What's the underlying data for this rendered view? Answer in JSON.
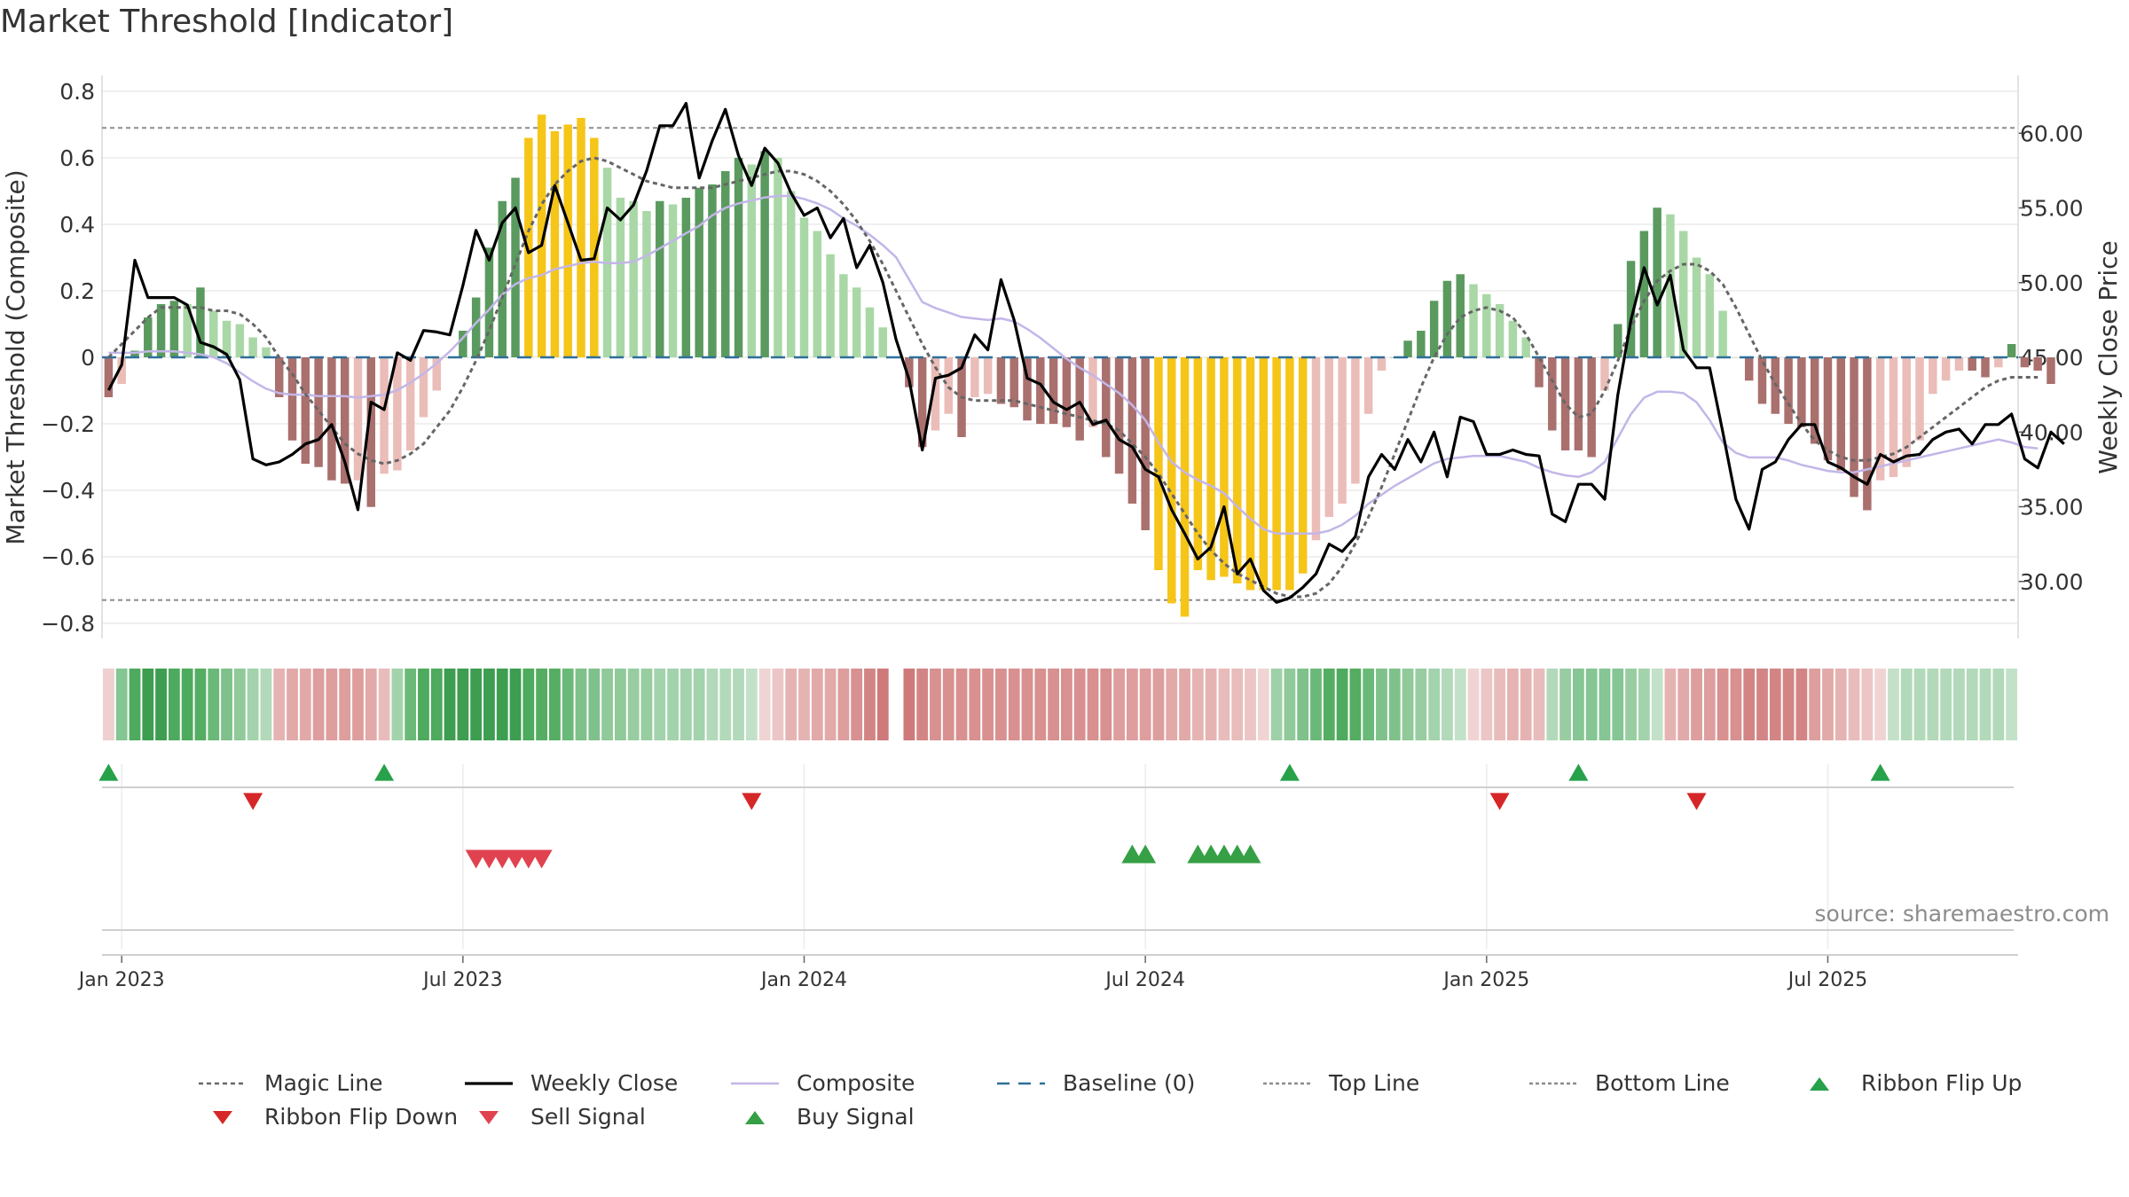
{
  "title": "Market Threshold [Indicator]",
  "source": "source: sharemaestro.com",
  "chart_data": {
    "type": "bar",
    "ylabel_left": "Market Threshold (Composite)",
    "ylabel_right": "Weekly Close Price",
    "ylim_left": [
      -0.84,
      0.84
    ],
    "left_ticks": [
      "0.8",
      "0.6",
      "0.4",
      "0.2",
      "0",
      "−0.2",
      "−0.4",
      "−0.6",
      "−0.8"
    ],
    "left_tick_values": [
      0.8,
      0.6,
      0.4,
      0.2,
      0,
      -0.2,
      -0.4,
      -0.6,
      -0.8
    ],
    "right_ticks": [
      "60.00",
      "55.00",
      "50.00",
      "45.00",
      "40.00",
      "35.00",
      "30.00"
    ],
    "right_tick_values": [
      60,
      55,
      50,
      45,
      40,
      35,
      30
    ],
    "x_ticks": [
      "Jan 2023",
      "Jul 2023",
      "Jan 2024",
      "Jul 2024",
      "Jan 2025",
      "Jul 2025"
    ],
    "x_tick_weeks": [
      1.5,
      27.5,
      53.5,
      79.5,
      105.5,
      131.5
    ],
    "top_line": 0.69,
    "bottom_line": -0.73,
    "composite": [
      -0.12,
      -0.08,
      0.02,
      0.12,
      0.16,
      0.17,
      0.16,
      0.21,
      0.14,
      0.11,
      0.1,
      0.06,
      0.03,
      -0.12,
      -0.25,
      -0.32,
      -0.33,
      -0.37,
      -0.38,
      -0.37,
      -0.45,
      -0.35,
      -0.34,
      -0.28,
      -0.18,
      -0.1,
      0.0,
      0.08,
      0.18,
      0.33,
      0.47,
      0.54,
      0.66,
      0.73,
      0.68,
      0.7,
      0.72,
      0.66,
      0.57,
      0.48,
      0.47,
      0.44,
      0.47,
      0.46,
      0.48,
      0.51,
      0.52,
      0.56,
      0.6,
      0.58,
      0.62,
      0.6,
      0.5,
      0.42,
      0.38,
      0.31,
      0.25,
      0.21,
      0.15,
      0.09,
      0.0,
      -0.09,
      -0.27,
      -0.22,
      -0.17,
      -0.24,
      -0.12,
      -0.11,
      -0.14,
      -0.15,
      -0.19,
      -0.2,
      -0.2,
      -0.21,
      -0.25,
      -0.21,
      -0.3,
      -0.35,
      -0.44,
      -0.52,
      -0.64,
      -0.74,
      -0.78,
      -0.64,
      -0.67,
      -0.66,
      -0.68,
      -0.7,
      -0.7,
      -0.7,
      -0.7,
      -0.65,
      -0.55,
      -0.48,
      -0.44,
      -0.38,
      -0.17,
      -0.04,
      0.0,
      0.05,
      0.08,
      0.17,
      0.23,
      0.25,
      0.22,
      0.19,
      0.16,
      0.11,
      0.06,
      -0.09,
      -0.22,
      -0.28,
      -0.28,
      -0.3,
      -0.1,
      0.1,
      0.29,
      0.38,
      0.45,
      0.43,
      0.38,
      0.3,
      0.25,
      0.14,
      0.0,
      -0.07,
      -0.14,
      -0.17,
      -0.2,
      -0.21,
      -0.26,
      -0.31,
      -0.34,
      -0.42,
      -0.46,
      -0.37,
      -0.36,
      -0.33,
      -0.25,
      -0.11,
      -0.07,
      -0.04,
      -0.04,
      -0.06,
      -0.03,
      0.04,
      -0.03,
      -0.04,
      -0.08
    ],
    "weekly_close": [
      42.8,
      44.5,
      51.5,
      49.0,
      49.0,
      49.0,
      48.5,
      46.0,
      45.7,
      45.2,
      43.5,
      38.2,
      37.8,
      38.0,
      38.5,
      39.2,
      39.5,
      40.5,
      38.0,
      34.8,
      42.0,
      41.5,
      45.3,
      44.8,
      46.8,
      46.7,
      46.5,
      49.8,
      53.5,
      51.5,
      54.0,
      55.0,
      52.0,
      52.5,
      56.5,
      54.0,
      51.5,
      51.6,
      55.0,
      54.2,
      55.2,
      57.5,
      60.5,
      60.5,
      62.0,
      57.0,
      59.5,
      61.6,
      58.5,
      56.5,
      59.0,
      58.0,
      56.0,
      54.5,
      55.0,
      53.0,
      54.3,
      51.0,
      52.5,
      50.0,
      46.2,
      43.5,
      38.8,
      43.6,
      43.8,
      44.3,
      46.5,
      45.5,
      50.2,
      47.5,
      43.6,
      43.2,
      42.0,
      41.5,
      42.0,
      40.5,
      40.8,
      39.5,
      39.0,
      37.5,
      37.0,
      34.8,
      33.2,
      31.5,
      32.3,
      35.0,
      30.5,
      31.5,
      29.4,
      28.6,
      28.9,
      29.6,
      30.5,
      32.5,
      32.0,
      33.0,
      37.0,
      38.5,
      37.5,
      39.5,
      38.0,
      40.0,
      37.0,
      41.0,
      40.7,
      38.5,
      38.5,
      38.8,
      38.5,
      38.4,
      34.5,
      34.0,
      36.5,
      36.5,
      35.5,
      42.5,
      47.5,
      51.0,
      48.5,
      50.5,
      45.5,
      44.3,
      44.3,
      40.0,
      35.5,
      33.5,
      37.5,
      38.0,
      39.5,
      40.5,
      40.5,
      38.0,
      37.6,
      37.0,
      36.5,
      38.5,
      38.0,
      38.4,
      38.5,
      39.5,
      40.0,
      40.2,
      39.2,
      40.5,
      40.5,
      41.2,
      38.2,
      37.6,
      40.0,
      39.2
    ],
    "composite_smooth": [
      45.3,
      45.3,
      45.3,
      45.4,
      45.4,
      45.4,
      45.3,
      45.2,
      45.0,
      44.6,
      44.0,
      43.4,
      42.9,
      42.6,
      42.5,
      42.5,
      42.4,
      42.4,
      42.4,
      42.3,
      42.4,
      42.5,
      42.8,
      43.3,
      43.9,
      44.6,
      45.4,
      46.3,
      47.3,
      48.2,
      49.2,
      49.9,
      50.3,
      50.5,
      50.9,
      51.1,
      51.3,
      51.4,
      51.3,
      51.3,
      51.4,
      51.8,
      52.3,
      52.8,
      53.3,
      53.8,
      54.5,
      55.0,
      55.3,
      55.5,
      55.7,
      55.8,
      55.8,
      55.6,
      55.3,
      54.9,
      54.3,
      53.8,
      53.2,
      52.5,
      51.7,
      50.2,
      48.7,
      48.3,
      48.0,
      47.7,
      47.6,
      47.5,
      47.6,
      47.4,
      46.9,
      46.3,
      45.6,
      44.9,
      44.3,
      43.8,
      43.2,
      42.6,
      41.8,
      40.8,
      39.3,
      38.0,
      37.3,
      36.8,
      36.4,
      35.9,
      35.0,
      34.2,
      33.5,
      33.2,
      33.2,
      33.2,
      33.2,
      33.4,
      33.8,
      34.4,
      35.2,
      35.8,
      36.4,
      36.9,
      37.4,
      37.9,
      38.2,
      38.3,
      38.4,
      38.4,
      38.4,
      38.2,
      38.0,
      37.6,
      37.3,
      37.1,
      37.0,
      37.3,
      38.0,
      39.6,
      41.2,
      42.3,
      42.7,
      42.7,
      42.6,
      42.0,
      40.8,
      39.3,
      38.6,
      38.3,
      38.3,
      38.3,
      38.1,
      37.8,
      37.6,
      37.4,
      37.3,
      37.3,
      37.5,
      37.7,
      37.9,
      38.1,
      38.3,
      38.5,
      38.7,
      38.9,
      39.1,
      39.3,
      39.5,
      39.3,
      39.0,
      38.9
    ],
    "magic_line": [
      0.0,
      0.04,
      0.08,
      0.12,
      0.15,
      0.15,
      0.15,
      0.15,
      0.14,
      0.14,
      0.13,
      0.1,
      0.06,
      0.0,
      -0.05,
      -0.11,
      -0.16,
      -0.21,
      -0.26,
      -0.29,
      -0.31,
      -0.32,
      -0.31,
      -0.29,
      -0.26,
      -0.21,
      -0.16,
      -0.09,
      -0.01,
      0.08,
      0.18,
      0.28,
      0.38,
      0.46,
      0.52,
      0.56,
      0.59,
      0.6,
      0.59,
      0.57,
      0.55,
      0.53,
      0.52,
      0.51,
      0.51,
      0.51,
      0.51,
      0.52,
      0.53,
      0.54,
      0.55,
      0.56,
      0.56,
      0.55,
      0.53,
      0.5,
      0.46,
      0.41,
      0.35,
      0.28,
      0.2,
      0.12,
      0.04,
      -0.03,
      -0.09,
      -0.12,
      -0.13,
      -0.13,
      -0.13,
      -0.13,
      -0.14,
      -0.15,
      -0.16,
      -0.17,
      -0.18,
      -0.19,
      -0.2,
      -0.22,
      -0.26,
      -0.3,
      -0.35,
      -0.41,
      -0.47,
      -0.53,
      -0.58,
      -0.62,
      -0.65,
      -0.67,
      -0.69,
      -0.71,
      -0.72,
      -0.72,
      -0.71,
      -0.68,
      -0.63,
      -0.56,
      -0.48,
      -0.39,
      -0.29,
      -0.19,
      -0.09,
      0.0,
      0.07,
      0.12,
      0.14,
      0.15,
      0.14,
      0.12,
      0.07,
      0.0,
      -0.07,
      -0.14,
      -0.18,
      -0.17,
      -0.1,
      -0.01,
      0.09,
      0.17,
      0.23,
      0.26,
      0.28,
      0.28,
      0.26,
      0.22,
      0.15,
      0.07,
      -0.01,
      -0.08,
      -0.14,
      -0.2,
      -0.25,
      -0.28,
      -0.3,
      -0.31,
      -0.31,
      -0.3,
      -0.29,
      -0.27,
      -0.24,
      -0.21,
      -0.18,
      -0.15,
      -0.12,
      -0.09,
      -0.07,
      -0.06,
      -0.06,
      -0.06
    ],
    "ribbon_flip_up_weeks": [
      0.5,
      21.5,
      90.5,
      112.5,
      135.5
    ],
    "ribbon_flip_down_weeks": [
      11.5,
      49.5,
      106.5,
      121.5
    ],
    "sell_signal_weeks": [
      28.5,
      29.5,
      30.5,
      31.5,
      32.5,
      33.5
    ],
    "buy_signal_weeks": [
      78.5,
      79.5,
      83.5,
      84.5,
      85.5,
      86.5,
      87.5
    ],
    "ribbon_colors": [
      "#efcfcf",
      "#86c594",
      "#4eaa5e",
      "#3d9d51",
      "#3d9d51",
      "#4eaa5e",
      "#4eaa5e",
      "#55ad63",
      "#6bb978",
      "#7fc18b",
      "#90c99a",
      "#a3d3ac",
      "#b2d9b9",
      "#e6b3b3",
      "#e2a9a9",
      "#e2a9a9",
      "#de9e9e",
      "#de9e9e",
      "#de9e9e",
      "#de9e9e",
      "#e2a9a9",
      "#e9bcbc",
      "#a3d3ac",
      "#6bb978",
      "#4eaa5e",
      "#4eaa5e",
      "#3d9d51",
      "#3d9d51",
      "#3d9d51",
      "#3d9d51",
      "#3d9d51",
      "#3d9d51",
      "#4eaa5e",
      "#55ad63",
      "#55ad63",
      "#6bb978",
      "#7fc18b",
      "#7fc18b",
      "#90c99a",
      "#90c99a",
      "#98cda1",
      "#98cda1",
      "#a3d3ac",
      "#a3d3ac",
      "#a3d3ac",
      "#a3d3ac",
      "#b2d9b9",
      "#b2d9b9",
      "#b2d9b9",
      "#c3e1c8",
      "#f0d4d4",
      "#ecc6c6",
      "#e6b3b3",
      "#e6b3b3",
      "#e2a9a9",
      "#e2a9a9",
      "#de9e9e",
      "#d89090",
      "#d38585",
      "#cf7a7a",
      "#ffffff",
      "#cf7a7a",
      "#d38585",
      "#d89090",
      "#d89090",
      "#d89090",
      "#d89090",
      "#d89090",
      "#d89090",
      "#d89090",
      "#d89090",
      "#d89090",
      "#d89090",
      "#d89090",
      "#d89090",
      "#d89090",
      "#d89090",
      "#de9e9e",
      "#de9e9e",
      "#de9e9e",
      "#de9e9e",
      "#e2a9a9",
      "#e2a9a9",
      "#e6b3b3",
      "#e6b3b3",
      "#e9bcbc",
      "#e9bcbc",
      "#ecc6c6",
      "#f0d4d4",
      "#9fd1a9",
      "#90c99a",
      "#7fc18b",
      "#6bb978",
      "#55ad63",
      "#4eaa5e",
      "#55ad63",
      "#6bb978",
      "#7fc18b",
      "#7fc18b",
      "#90c99a",
      "#98cda1",
      "#a3d3ac",
      "#b2d9b9",
      "#c3e1c8",
      "#f0d4d4",
      "#ecc6c6",
      "#e9bcbc",
      "#e6b3b3",
      "#e6b3b3",
      "#e9bcbc",
      "#b2d9b9",
      "#98cda1",
      "#86c594",
      "#86c594",
      "#86c594",
      "#86c594",
      "#98cda1",
      "#a3d3ac",
      "#c3e1c8",
      "#e6b3b3",
      "#e2a9a9",
      "#de9e9e",
      "#de9e9e",
      "#d89090",
      "#d89090",
      "#d38585",
      "#d38585",
      "#d38585",
      "#d38585",
      "#d38585",
      "#de9e9e",
      "#e2a9a9",
      "#e6b3b3",
      "#e9bcbc",
      "#ecc6c6",
      "#f0d4d4",
      "#c3e1c8",
      "#b2d9b9",
      "#b2d9b9",
      "#b2d9b9",
      "#b2d9b9",
      "#b2d9b9",
      "#b2d9b9",
      "#b2d9b9",
      "#b2d9b9",
      "#c3e1c8"
    ]
  },
  "legend": [
    {
      "label": "Magic Line",
      "kind": "dotted",
      "color": "#666666"
    },
    {
      "label": "Weekly Close",
      "kind": "solid",
      "color": "#000000"
    },
    {
      "label": "Composite",
      "kind": "solid-thin",
      "color": "#c3b6e8"
    },
    {
      "label": "Baseline (0)",
      "kind": "dashed",
      "color": "#2f6f9a"
    },
    {
      "label": "Top Line",
      "kind": "finedash",
      "color": "#8c8c8c"
    },
    {
      "label": "Bottom Line",
      "kind": "finedash",
      "color": "#8c8c8c"
    },
    {
      "label": "Ribbon Flip Up",
      "kind": "tri-up",
      "color": "#27a14a"
    },
    {
      "label": "Ribbon Flip Down",
      "kind": "tri-down",
      "color": "#d62728"
    },
    {
      "label": "Sell Signal",
      "kind": "tri-down",
      "color": "#e0434f"
    },
    {
      "label": "Buy Signal",
      "kind": "tri-up",
      "color": "#35a045"
    }
  ]
}
